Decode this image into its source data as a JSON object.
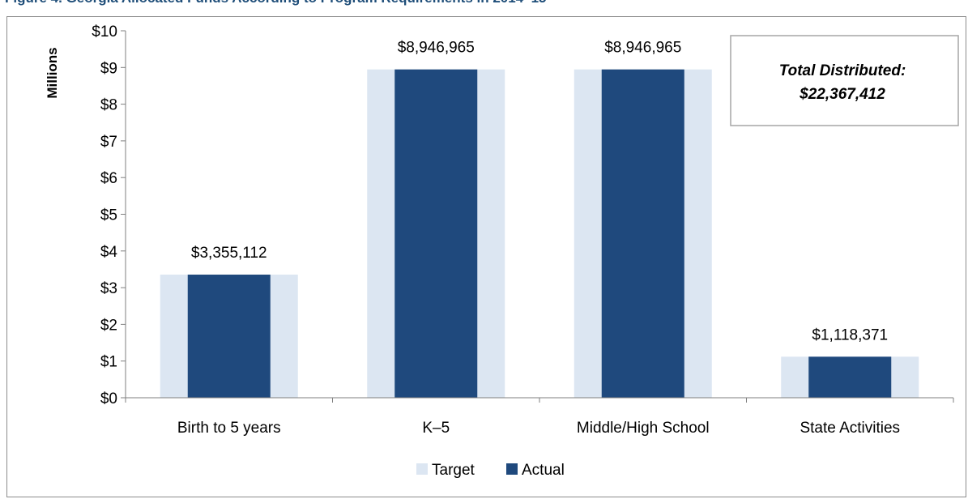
{
  "figure_title": "Figure 4. Georgia Allocated Funds According to Program Requirements in 2014–15",
  "callout": {
    "line1": "Total Distributed:",
    "line2": "$22,367,412"
  },
  "colors": {
    "target": "#dce6f2",
    "actual": "#1f497d",
    "axis": "#7f7f7f"
  },
  "chart_data": {
    "type": "bar",
    "title": "Figure 4. Georgia Allocated Funds According to Program Requirements in 2014–15",
    "xlabel": "",
    "ylabel": "Millions",
    "ylim": [
      0,
      10
    ],
    "yticks": [
      0,
      1,
      2,
      3,
      4,
      5,
      6,
      7,
      8,
      9,
      10
    ],
    "ytick_labels": [
      "$0",
      "$1",
      "$2",
      "$3",
      "$4",
      "$5",
      "$6",
      "$7",
      "$8",
      "$9",
      "$10"
    ],
    "categories": [
      "Birth to 5 years",
      "K–5",
      "Middle/High School",
      "State Activities"
    ],
    "series": [
      {
        "name": "Target",
        "values": [
          3.355112,
          8.946965,
          8.946965,
          1.118371
        ]
      },
      {
        "name": "Actual",
        "values": [
          3.355112,
          8.946965,
          8.946965,
          1.118371
        ]
      }
    ],
    "data_labels": [
      "$3,355,112",
      "$8,946,965",
      "$8,946,965",
      "$1,118,371"
    ],
    "legend_position": "bottom",
    "grid": false
  }
}
